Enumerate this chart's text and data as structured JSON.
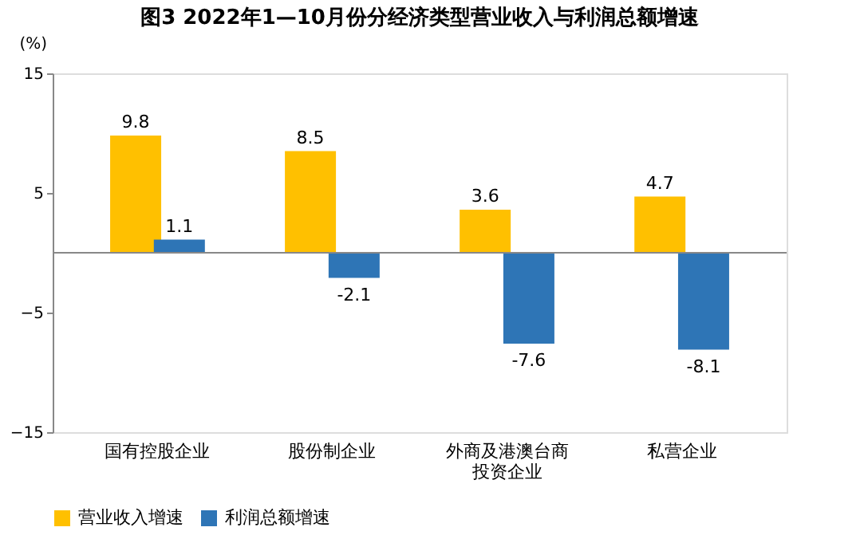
{
  "chart_data": {
    "type": "bar",
    "title": "图3  2022年1—10月份分经济类型营业收入与利润总额增速",
    "ylabel": "(%)",
    "categories": [
      "国有控股企业",
      "股份制企业",
      "外商及港澳台商投资企业",
      "私营企业"
    ],
    "series": [
      {
        "name": "营业收入增速",
        "color": "#ffc000",
        "values": [
          9.8,
          8.5,
          3.6,
          4.7
        ]
      },
      {
        "name": "利润总额增速",
        "color": "#2e75b6",
        "values": [
          1.1,
          -2.1,
          -7.6,
          -8.1
        ]
      }
    ],
    "ylim": [
      -15,
      15
    ],
    "yticks": [
      -15,
      -5,
      5,
      15
    ],
    "grid": false,
    "data_labels": true,
    "legend": "bottom"
  }
}
